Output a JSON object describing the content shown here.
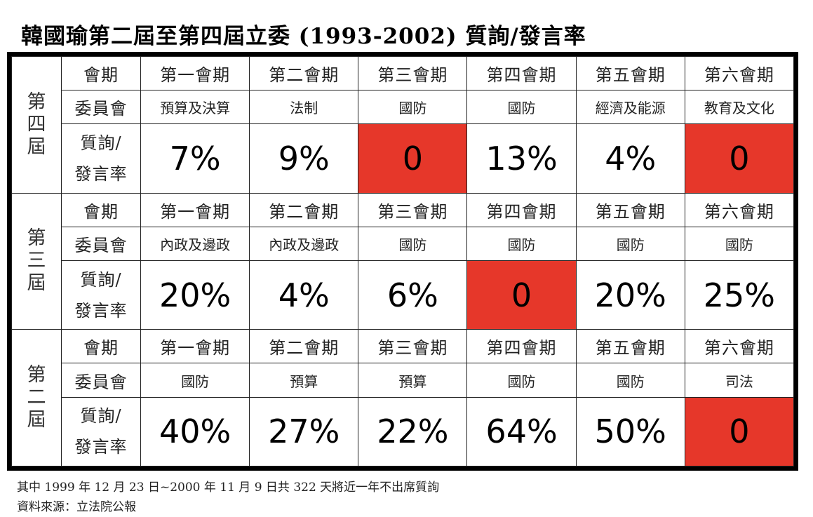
{
  "title": "韓國瑜第二屆至第四屆立委 (1993-2002) 質詢/發言率",
  "labels": {
    "session": "會期",
    "committee": "委員會",
    "rate_line1": "質詢/",
    "rate_line2": "發言率"
  },
  "colors": {
    "highlight_zero": "#e6372a"
  },
  "groups": [
    {
      "term": [
        "第",
        "四",
        "屆"
      ],
      "sessions": [
        "第一會期",
        "第二會期",
        "第三會期",
        "第四會期",
        "第五會期",
        "第六會期"
      ],
      "committees": [
        "預算及決算",
        "法制",
        "國防",
        "國防",
        "經濟及能源",
        "教育及文化"
      ],
      "rates": [
        "7%",
        "9%",
        "0",
        "13%",
        "4%",
        "0"
      ]
    },
    {
      "term": [
        "第",
        "三",
        "屆"
      ],
      "sessions": [
        "第一會期",
        "第二會期",
        "第三會期",
        "第四會期",
        "第五會期",
        "第六會期"
      ],
      "committees": [
        "內政及邊政",
        "內政及邊政",
        "國防",
        "國防",
        "國防",
        "國防"
      ],
      "rates": [
        "20%",
        "4%",
        "6%",
        "0",
        "20%",
        "25%"
      ]
    },
    {
      "term": [
        "第",
        "二",
        "屆"
      ],
      "sessions": [
        "第一會期",
        "第二會期",
        "第三會期",
        "第四會期",
        "第五會期",
        "第六會期"
      ],
      "committees": [
        "國防",
        "預算",
        "預算",
        "國防",
        "國防",
        "司法"
      ],
      "rates": [
        "40%",
        "27%",
        "22%",
        "64%",
        "50%",
        "0"
      ]
    }
  ],
  "footnote": "其中 1999 年 12 月 23 日~2000 年 11 月 9 日共 322 天將近一年不出席質詢",
  "source": "資料來源：立法院公報"
}
